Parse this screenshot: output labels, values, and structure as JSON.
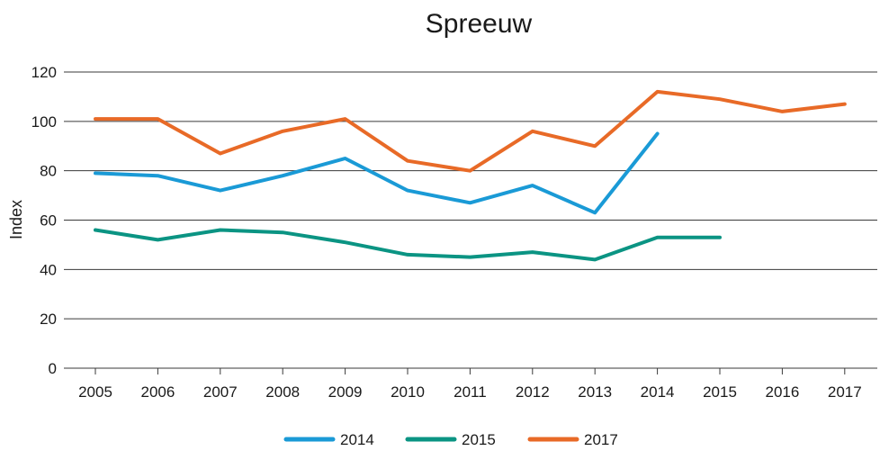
{
  "chart_data": {
    "type": "line",
    "title": "Spreeuw",
    "xlabel": "",
    "ylabel": "Index",
    "categories": [
      "2005",
      "2006",
      "2007",
      "2008",
      "2009",
      "2010",
      "2011",
      "2012",
      "2013",
      "2014",
      "2015",
      "2016",
      "2017"
    ],
    "yticks": [
      "0",
      "20",
      "40",
      "60",
      "80",
      "100",
      "120"
    ],
    "ylim": [
      0,
      120
    ],
    "grid": true,
    "legend_position": "bottom",
    "series": [
      {
        "name": "2014",
        "color": "#1a9ad6",
        "values": [
          79,
          78,
          72,
          78,
          85,
          72,
          67,
          74,
          63,
          95,
          null,
          null,
          null
        ]
      },
      {
        "name": "2015",
        "color": "#0b9483",
        "values": [
          56,
          52,
          56,
          55,
          51,
          46,
          45,
          47,
          44,
          53,
          53,
          null,
          null
        ]
      },
      {
        "name": "2017",
        "color": "#e86a27",
        "values": [
          101,
          101,
          87,
          96,
          101,
          84,
          80,
          96,
          90,
          112,
          109,
          104,
          107
        ]
      }
    ]
  }
}
